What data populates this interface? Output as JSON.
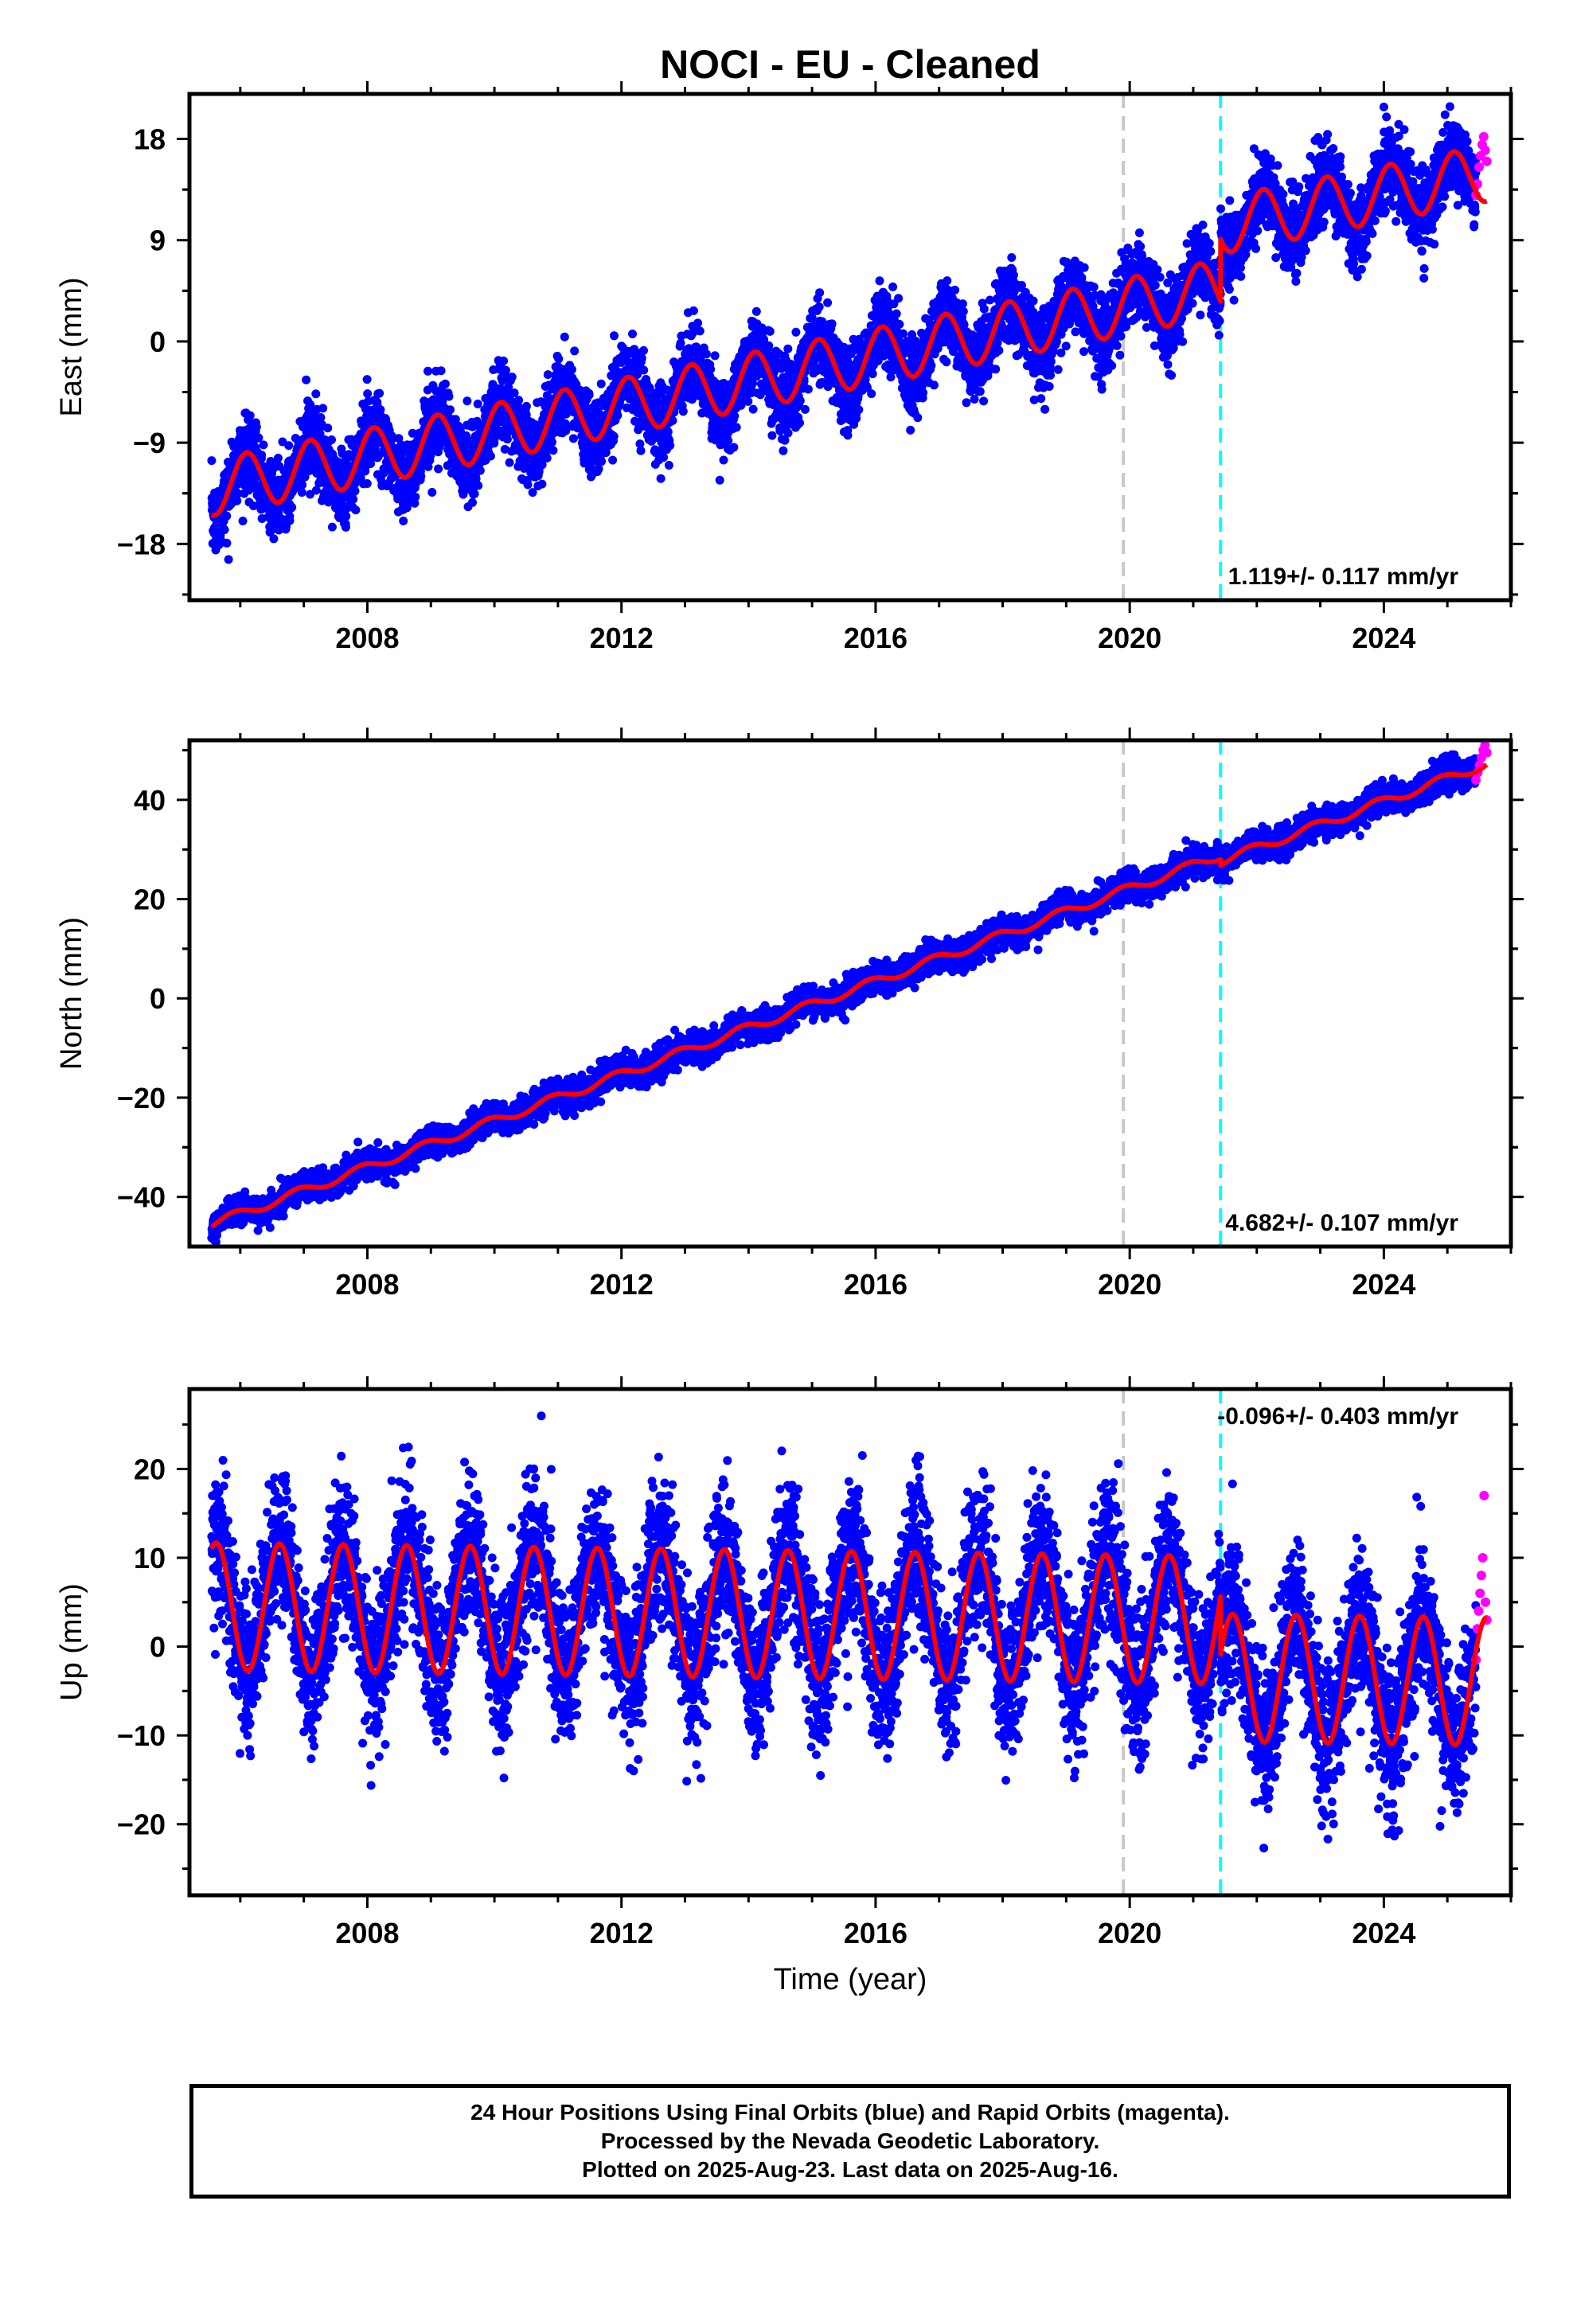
{
  "title": "NOCI  - EU - Cleaned",
  "colors": {
    "final_orbits": "#0000ff",
    "rapid_orbits": "#ff00ff",
    "model_fit": "#ff0000",
    "equipment_change": "#c8c8c8",
    "earthquake_event": "#00ffff"
  },
  "chart_data": [
    {
      "type": "scatter",
      "ylabel": "East (mm)",
      "xlabel": "",
      "xlim": [
        2005.2,
        2026.0
      ],
      "ylim": [
        -23,
        22
      ],
      "x_ticks": [
        2008,
        2012,
        2016,
        2020,
        2024
      ],
      "y_ticks": [
        -18,
        -9,
        0,
        9,
        18
      ],
      "rate_label": "1.119+/- 0.117 mm/yr",
      "rate_position": "bottom-right",
      "vertical_lines": [
        {
          "x": 2019.9,
          "kind": "equipment_change"
        },
        {
          "x": 2021.43,
          "kind": "earthquake_event"
        }
      ],
      "model": {
        "offset_at_start": -13.0,
        "rate": 1.119,
        "annual_amplitude": 2.5,
        "annual_phase": 0.3,
        "step": {
          "x": 2021.43,
          "size": 5.5
        }
      },
      "series": [
        {
          "kind": "final_orbits",
          "x_range": [
            2005.55,
            2025.45
          ],
          "scatter": 1.5,
          "extra_seasonal": 1.8
        },
        {
          "kind": "rapid_orbits",
          "x_range": [
            2025.45,
            2025.62
          ],
          "values": [
            13.0,
            14.0,
            15.5,
            16.5,
            17.5,
            18.2,
            17.0,
            16.0
          ]
        }
      ]
    },
    {
      "type": "scatter",
      "ylabel": "North (mm)",
      "xlabel": "",
      "xlim": [
        2005.2,
        2026.0
      ],
      "ylim": [
        -50,
        52
      ],
      "x_ticks": [
        2008,
        2012,
        2016,
        2020,
        2024
      ],
      "y_ticks": [
        -40,
        -20,
        0,
        20,
        40
      ],
      "rate_label": "4.682+/- 0.107 mm/yr",
      "rate_position": "bottom-right",
      "vertical_lines": [
        {
          "x": 2019.9,
          "kind": "equipment_change"
        },
        {
          "x": 2021.43,
          "kind": "earthquake_event"
        }
      ],
      "model": {
        "offset_at_start": -45.5,
        "rate": 4.682,
        "annual_amplitude": 0.9,
        "annual_phase": 0.1,
        "step": {
          "x": 2021.43,
          "size": -1.2
        }
      },
      "series": [
        {
          "kind": "final_orbits",
          "x_range": [
            2005.55,
            2025.45
          ],
          "scatter": 1.4,
          "extra_seasonal": 0.5
        },
        {
          "kind": "rapid_orbits",
          "x_range": [
            2025.45,
            2025.62
          ],
          "values": [
            44.0,
            45.5,
            47.0,
            48.5,
            50.0,
            51.0,
            49.5
          ]
        }
      ]
    },
    {
      "type": "scatter",
      "ylabel": "Up (mm)",
      "xlabel": "Time (year)",
      "xlim": [
        2005.2,
        2026.0
      ],
      "ylim": [
        -28,
        29
      ],
      "x_ticks": [
        2008,
        2012,
        2016,
        2020,
        2024
      ],
      "y_ticks": [
        -20,
        -10,
        0,
        10,
        20
      ],
      "rate_label": "-0.096+/- 0.403 mm/yr",
      "rate_position": "top-right",
      "vertical_lines": [
        {
          "x": 2019.9,
          "kind": "equipment_change"
        },
        {
          "x": 2021.43,
          "kind": "earthquake_event"
        }
      ],
      "model": {
        "offset_at_start": 4.5,
        "rate": -0.096,
        "annual_amplitude": 7.2,
        "annual_phase": 0.82,
        "step": {
          "x": 2021.43,
          "size": -6.5
        }
      },
      "series": [
        {
          "kind": "final_orbits",
          "x_range": [
            2005.55,
            2025.45
          ],
          "scatter": 4.0,
          "extra_seasonal": 3.5
        },
        {
          "kind": "rapid_orbits",
          "x_range": [
            2025.45,
            2025.62
          ],
          "values": [
            -1.5,
            2.0,
            4.0,
            6.0,
            8.0,
            10.0,
            17.0,
            5.0,
            3.0
          ]
        }
      ]
    }
  ],
  "footer": {
    "line1": "24 Hour Positions Using Final Orbits (blue) and Rapid Orbits (magenta).",
    "line2": "Processed by the Nevada Geodetic Laboratory.",
    "line3": "Plotted on 2025-Aug-23. Last data on 2025-Aug-16."
  }
}
